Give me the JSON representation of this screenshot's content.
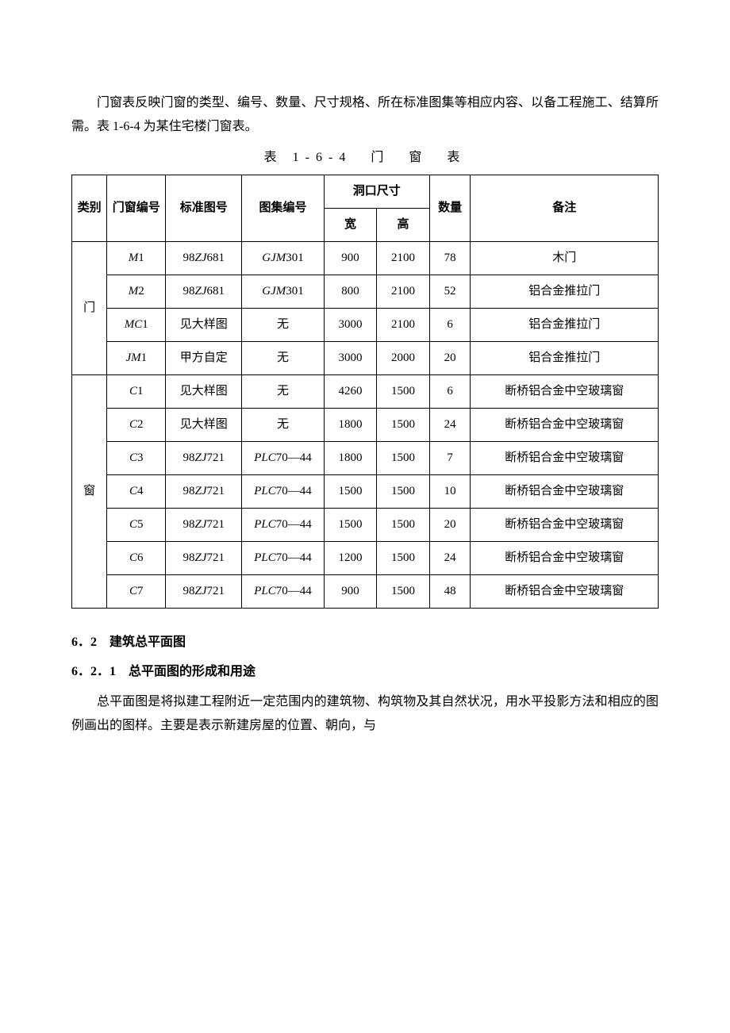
{
  "intro": "门窗表反映门窗的类型、编号、数量、尺寸规格、所在标准图集等相应内容、以备工程施工、结算所需。表 1-6-4 为某住宅楼门窗表。",
  "tableTitle": "表 1-6-4　门　窗　表",
  "headers": {
    "type": "类别",
    "code": "门窗编号",
    "std": "标准图号",
    "set": "图集编号",
    "openingSize": "洞口尺寸",
    "width": "宽",
    "height": "高",
    "qty": "数量",
    "note": "备注"
  },
  "groupDoor": "门",
  "groupWindow": "窗",
  "rows": [
    {
      "code_i": "M",
      "code_n": "1",
      "std_i": "ZJ",
      "std_pre": "98",
      "std_suf": "681",
      "set_i": "GJM",
      "set_suf": "301",
      "w": "900",
      "h": "2100",
      "qty": "78",
      "note": "木门"
    },
    {
      "code_i": "M",
      "code_n": "2",
      "std_i": "ZJ",
      "std_pre": "98",
      "std_suf": "681",
      "set_i": "GJM",
      "set_suf": "301",
      "w": "800",
      "h": "2100",
      "qty": "52",
      "note": "铝合金推拉门"
    },
    {
      "code_i": "MC",
      "code_n": "1",
      "std_plain": "见大样图",
      "set_plain": "无",
      "w": "3000",
      "h": "2100",
      "qty": "6",
      "note": "铝合金推拉门"
    },
    {
      "code_i": "JM",
      "code_n": "1",
      "std_plain": "甲方自定",
      "set_plain": "无",
      "w": "3000",
      "h": "2000",
      "qty": "20",
      "note": "铝合金推拉门"
    },
    {
      "code_i": "C",
      "code_n": "1",
      "std_plain": "见大样图",
      "set_plain": "无",
      "w": "4260",
      "h": "1500",
      "qty": "6",
      "note": "断桥铝合金中空玻璃窗"
    },
    {
      "code_i": "C",
      "code_n": "2",
      "std_plain": "见大样图",
      "set_plain": "无",
      "w": "1800",
      "h": "1500",
      "qty": "24",
      "note": "断桥铝合金中空玻璃窗"
    },
    {
      "code_i": "C",
      "code_n": "3",
      "std_i": "ZJ",
      "std_pre": "98",
      "std_suf": "721",
      "set_i": "PLC",
      "set_suf": "70—44",
      "w": "1800",
      "h": "1500",
      "qty": "7",
      "note": "断桥铝合金中空玻璃窗"
    },
    {
      "code_i": "C",
      "code_n": "4",
      "std_i": "ZJ",
      "std_pre": "98",
      "std_suf": "721",
      "set_i": "PLC",
      "set_suf": "70—44",
      "w": "1500",
      "h": "1500",
      "qty": "10",
      "note": "断桥铝合金中空玻璃窗"
    },
    {
      "code_i": "C",
      "code_n": "5",
      "std_i": "ZJ",
      "std_pre": "98",
      "std_suf": "721",
      "set_i": "PLC",
      "set_suf": "70—44",
      "w": "1500",
      "h": "1500",
      "qty": "20",
      "note": "断桥铝合金中空玻璃窗"
    },
    {
      "code_i": "C",
      "code_n": "6",
      "std_i": "ZJ",
      "std_pre": "98",
      "std_suf": "721",
      "set_i": "PLC",
      "set_suf": "70—44",
      "w": "1200",
      "h": "1500",
      "qty": "24",
      "note": "断桥铝合金中空玻璃窗"
    },
    {
      "code_i": "C",
      "code_n": "7",
      "std_i": "ZJ",
      "std_pre": "98",
      "std_suf": "721",
      "set_i": "PLC",
      "set_suf": "70—44",
      "w": "900",
      "h": "1500",
      "qty": "48",
      "note": "断桥铝合金中空玻璃窗"
    }
  ],
  "section62": "6．2　建筑总平面图",
  "section621": "6．2．1　总平面图的形成和用途",
  "para621": "总平面图是将拟建工程附近一定范围内的建筑物、构筑物及其自然状况，用水平投影方法和相应的图例画出的图样。主要是表示新建房屋的位置、朝向，与"
}
